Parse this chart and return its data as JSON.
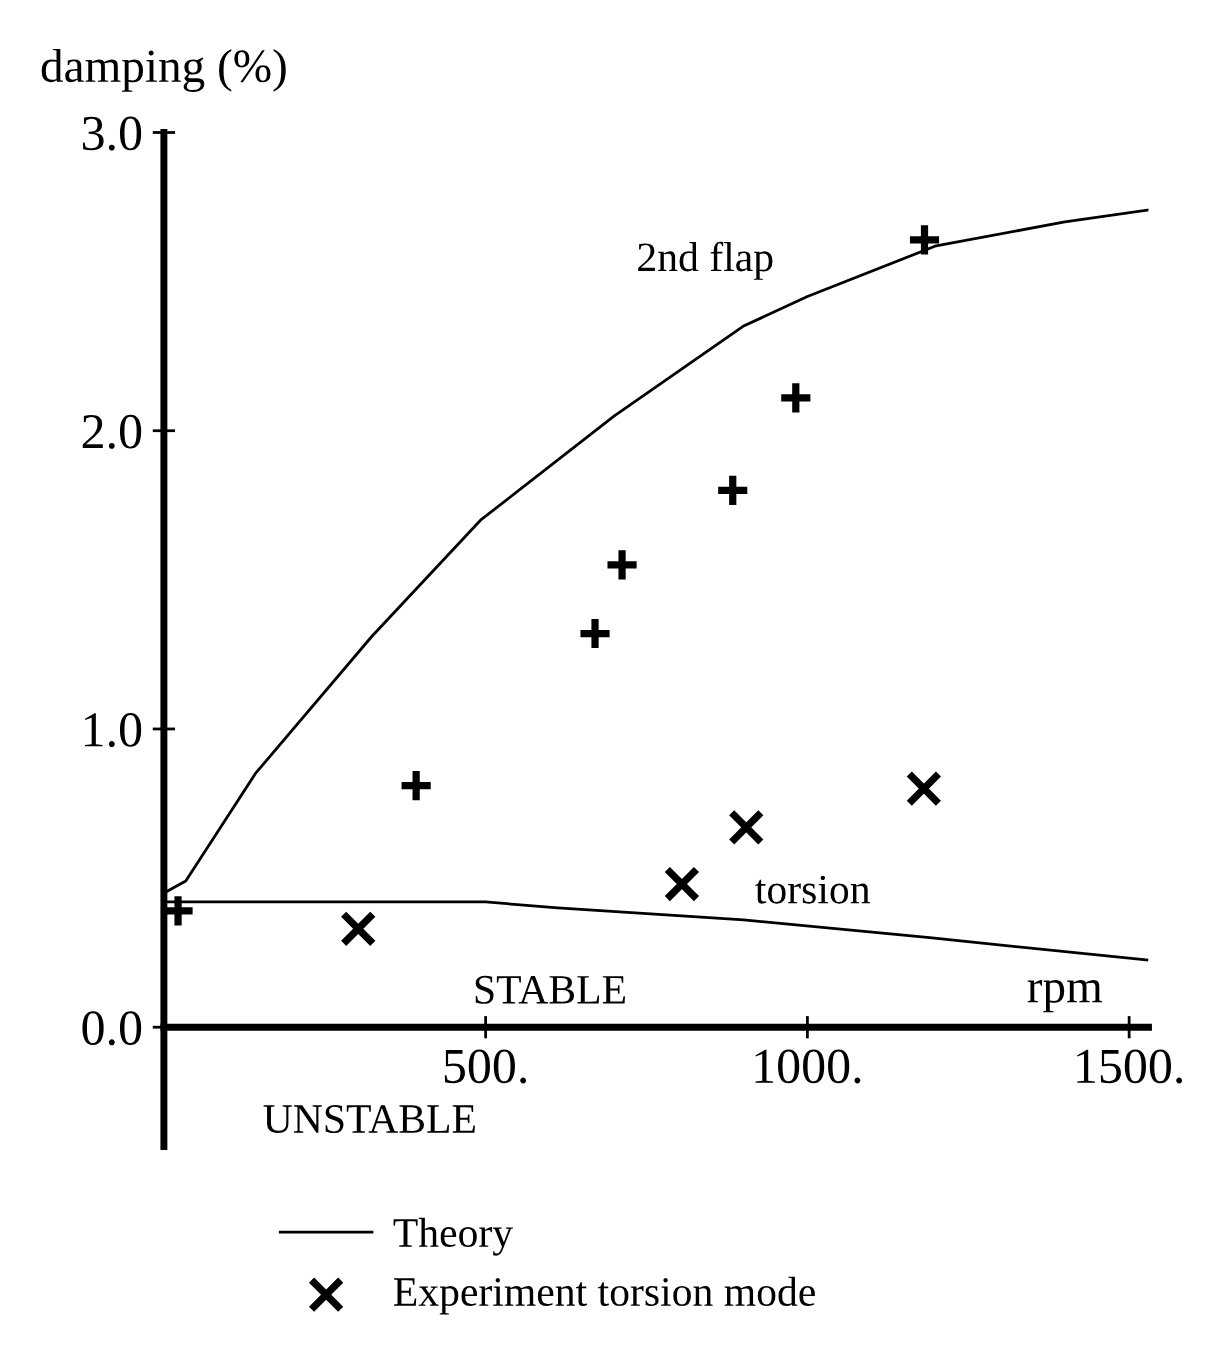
{
  "chart_data": {
    "type": "scatter",
    "xlabel": "rpm",
    "ylabel": "damping (%)",
    "xlim": [
      0,
      1530
    ],
    "ylim": [
      -0.4,
      3.0
    ],
    "xticks": [
      {
        "value": 0,
        "label": null
      },
      {
        "value": 500,
        "label": "500."
      },
      {
        "value": 1000,
        "label": "1000."
      },
      {
        "value": 1500,
        "label": "1500."
      }
    ],
    "yticks": [
      {
        "value": 0,
        "label": "0.0"
      },
      {
        "value": 1,
        "label": "1.0"
      },
      {
        "value": 2,
        "label": "2.0"
      },
      {
        "value": 3,
        "label": "3.0"
      }
    ],
    "series": [
      {
        "name": "Theory",
        "type": "line",
        "color": "#000000",
        "x": [
          0,
          34,
          142,
          323,
          492,
          700,
          900,
          1000,
          1200,
          1400,
          1530
        ],
        "values": [
          0.45,
          0.49,
          0.85,
          1.31,
          1.7,
          2.05,
          2.35,
          2.45,
          2.62,
          2.7,
          2.74
        ]
      },
      {
        "type": "line",
        "color": "#000000",
        "x": [
          0,
          500,
          612,
          901,
          1190,
          1528
        ],
        "values": [
          0.42,
          0.42,
          0.4,
          0.36,
          0.3,
          0.225
        ]
      },
      {
        "marker": "cross",
        "color": "#000000",
        "x": [
          22,
          392,
          670,
          712,
          884,
          982,
          1182
        ],
        "values": [
          0.39,
          0.81,
          1.32,
          1.55,
          1.8,
          2.11,
          2.64
        ]
      },
      {
        "name": "Experiment torsion mode",
        "marker": "x",
        "color": "#000000",
        "x": [
          302,
          805,
          905,
          1181
        ],
        "values": [
          0.33,
          0.48,
          0.67,
          0.8
        ]
      }
    ],
    "annotations": [
      {
        "text": "2nd flap",
        "x": 1000,
        "y": 2.45
      },
      {
        "text": "torsion",
        "x": 1150,
        "y": 0.33
      },
      "STABLE",
      "UNSTABLE"
    ],
    "legend": "bottom",
    "grid": false
  }
}
